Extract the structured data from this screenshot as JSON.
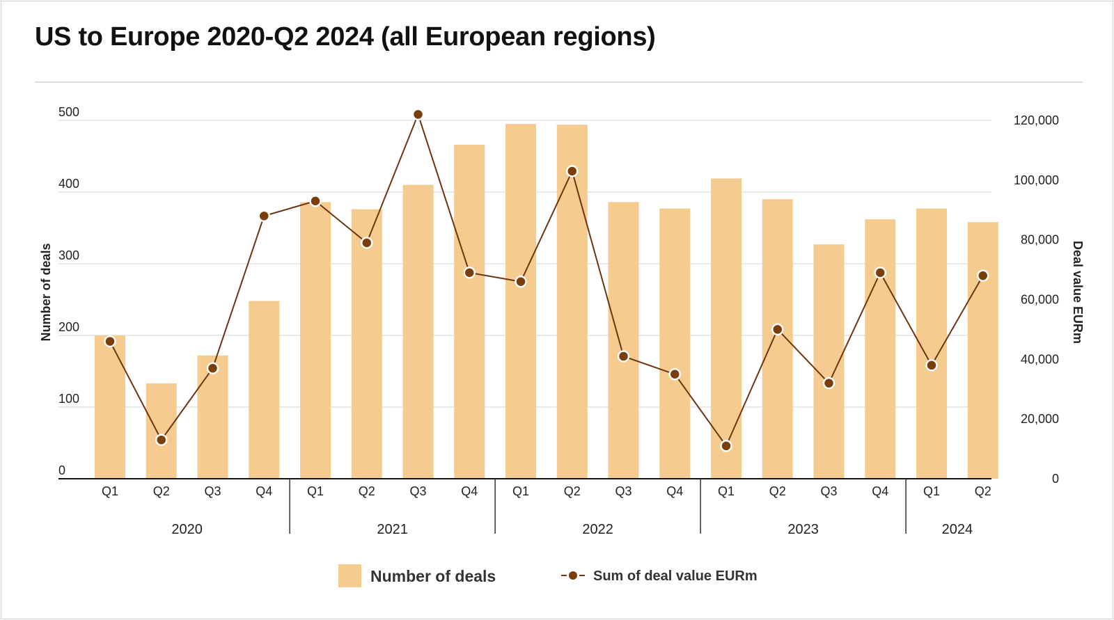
{
  "chart_data": {
    "type": "bar",
    "title": "US to Europe 2020-Q2 2024 (all European regions)",
    "categories": [
      "Q1",
      "Q2",
      "Q3",
      "Q4",
      "Q1",
      "Q2",
      "Q3",
      "Q4",
      "Q1",
      "Q2",
      "Q3",
      "Q4",
      "Q1",
      "Q2",
      "Q3",
      "Q4",
      "Q1",
      "Q2"
    ],
    "years": [
      {
        "label": "2020",
        "count": 4
      },
      {
        "label": "2021",
        "count": 4
      },
      {
        "label": "2022",
        "count": 4
      },
      {
        "label": "2023",
        "count": 4
      },
      {
        "label": "2024",
        "count": 2
      }
    ],
    "ylabel": "Number of deals",
    "y2label": "Deal value EURm",
    "ylim": [
      0,
      500
    ],
    "y2lim": [
      0,
      120000
    ],
    "yticks": [
      "0",
      "100",
      "200",
      "300",
      "400",
      "500"
    ],
    "y2ticks": [
      "0",
      "20,000",
      "40,000",
      "60,000",
      "80,000",
      "100,000",
      "120,000"
    ],
    "grid": true,
    "legend_position": "bottom",
    "series": [
      {
        "name": "Number of deals",
        "type": "bar",
        "axis": "left",
        "color": "#f5cb8f",
        "values": [
          200,
          133,
          172,
          248,
          386,
          376,
          410,
          466,
          495,
          494,
          386,
          377,
          419,
          390,
          327,
          362,
          377,
          358
        ]
      },
      {
        "name": "Sum of deal value EURm",
        "type": "line",
        "axis": "right",
        "color": "#6e3410",
        "marker_color": "#7a3e0b",
        "values": [
          46000,
          13000,
          37000,
          88000,
          93000,
          79000,
          122000,
          69000,
          66000,
          103000,
          41000,
          35000,
          11000,
          50000,
          32000,
          69000,
          38000,
          68000
        ]
      }
    ]
  }
}
